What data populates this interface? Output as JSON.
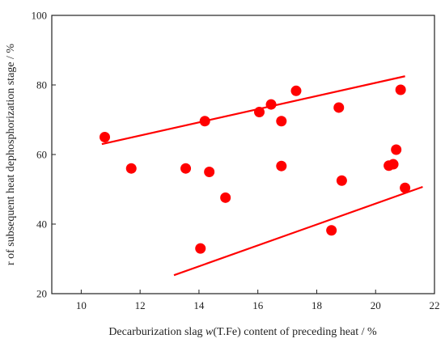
{
  "chart_data": {
    "type": "scatter",
    "title": "",
    "xlabel": {
      "prefix": "Decarburization slag ",
      "italic": "w",
      "suffix": "(T.Fe) content of preceding heat / %"
    },
    "ylabel": "r of subsequent heat dephosphorization stage  / %",
    "xlim": [
      9,
      22
    ],
    "ylim": [
      20,
      100
    ],
    "xticks": [
      10,
      12,
      14,
      16,
      18,
      20,
      22
    ],
    "yticks": [
      20,
      40,
      60,
      80,
      100
    ],
    "grid": false,
    "marker_color": "#ff0000",
    "line_color": "#ff0000",
    "points": [
      {
        "x": 10.8,
        "y": 65.0
      },
      {
        "x": 11.7,
        "y": 56.0
      },
      {
        "x": 13.55,
        "y": 56.0
      },
      {
        "x": 14.05,
        "y": 33.0
      },
      {
        "x": 14.2,
        "y": 69.6
      },
      {
        "x": 14.35,
        "y": 55.0
      },
      {
        "x": 14.9,
        "y": 47.6
      },
      {
        "x": 16.05,
        "y": 72.2
      },
      {
        "x": 16.45,
        "y": 74.4
      },
      {
        "x": 16.8,
        "y": 69.6
      },
      {
        "x": 16.8,
        "y": 56.7
      },
      {
        "x": 17.3,
        "y": 78.3
      },
      {
        "x": 18.5,
        "y": 38.2
      },
      {
        "x": 18.75,
        "y": 73.5
      },
      {
        "x": 18.85,
        "y": 52.5
      },
      {
        "x": 20.45,
        "y": 56.8
      },
      {
        "x": 20.6,
        "y": 57.2
      },
      {
        "x": 20.7,
        "y": 61.4
      },
      {
        "x": 20.85,
        "y": 78.6
      },
      {
        "x": 21.0,
        "y": 50.4
      }
    ],
    "lines": [
      {
        "x": [
          10.7,
          21.0
        ],
        "y": [
          63.0,
          82.5
        ]
      },
      {
        "x": [
          13.15,
          21.6
        ],
        "y": [
          25.3,
          50.7
        ]
      }
    ]
  }
}
